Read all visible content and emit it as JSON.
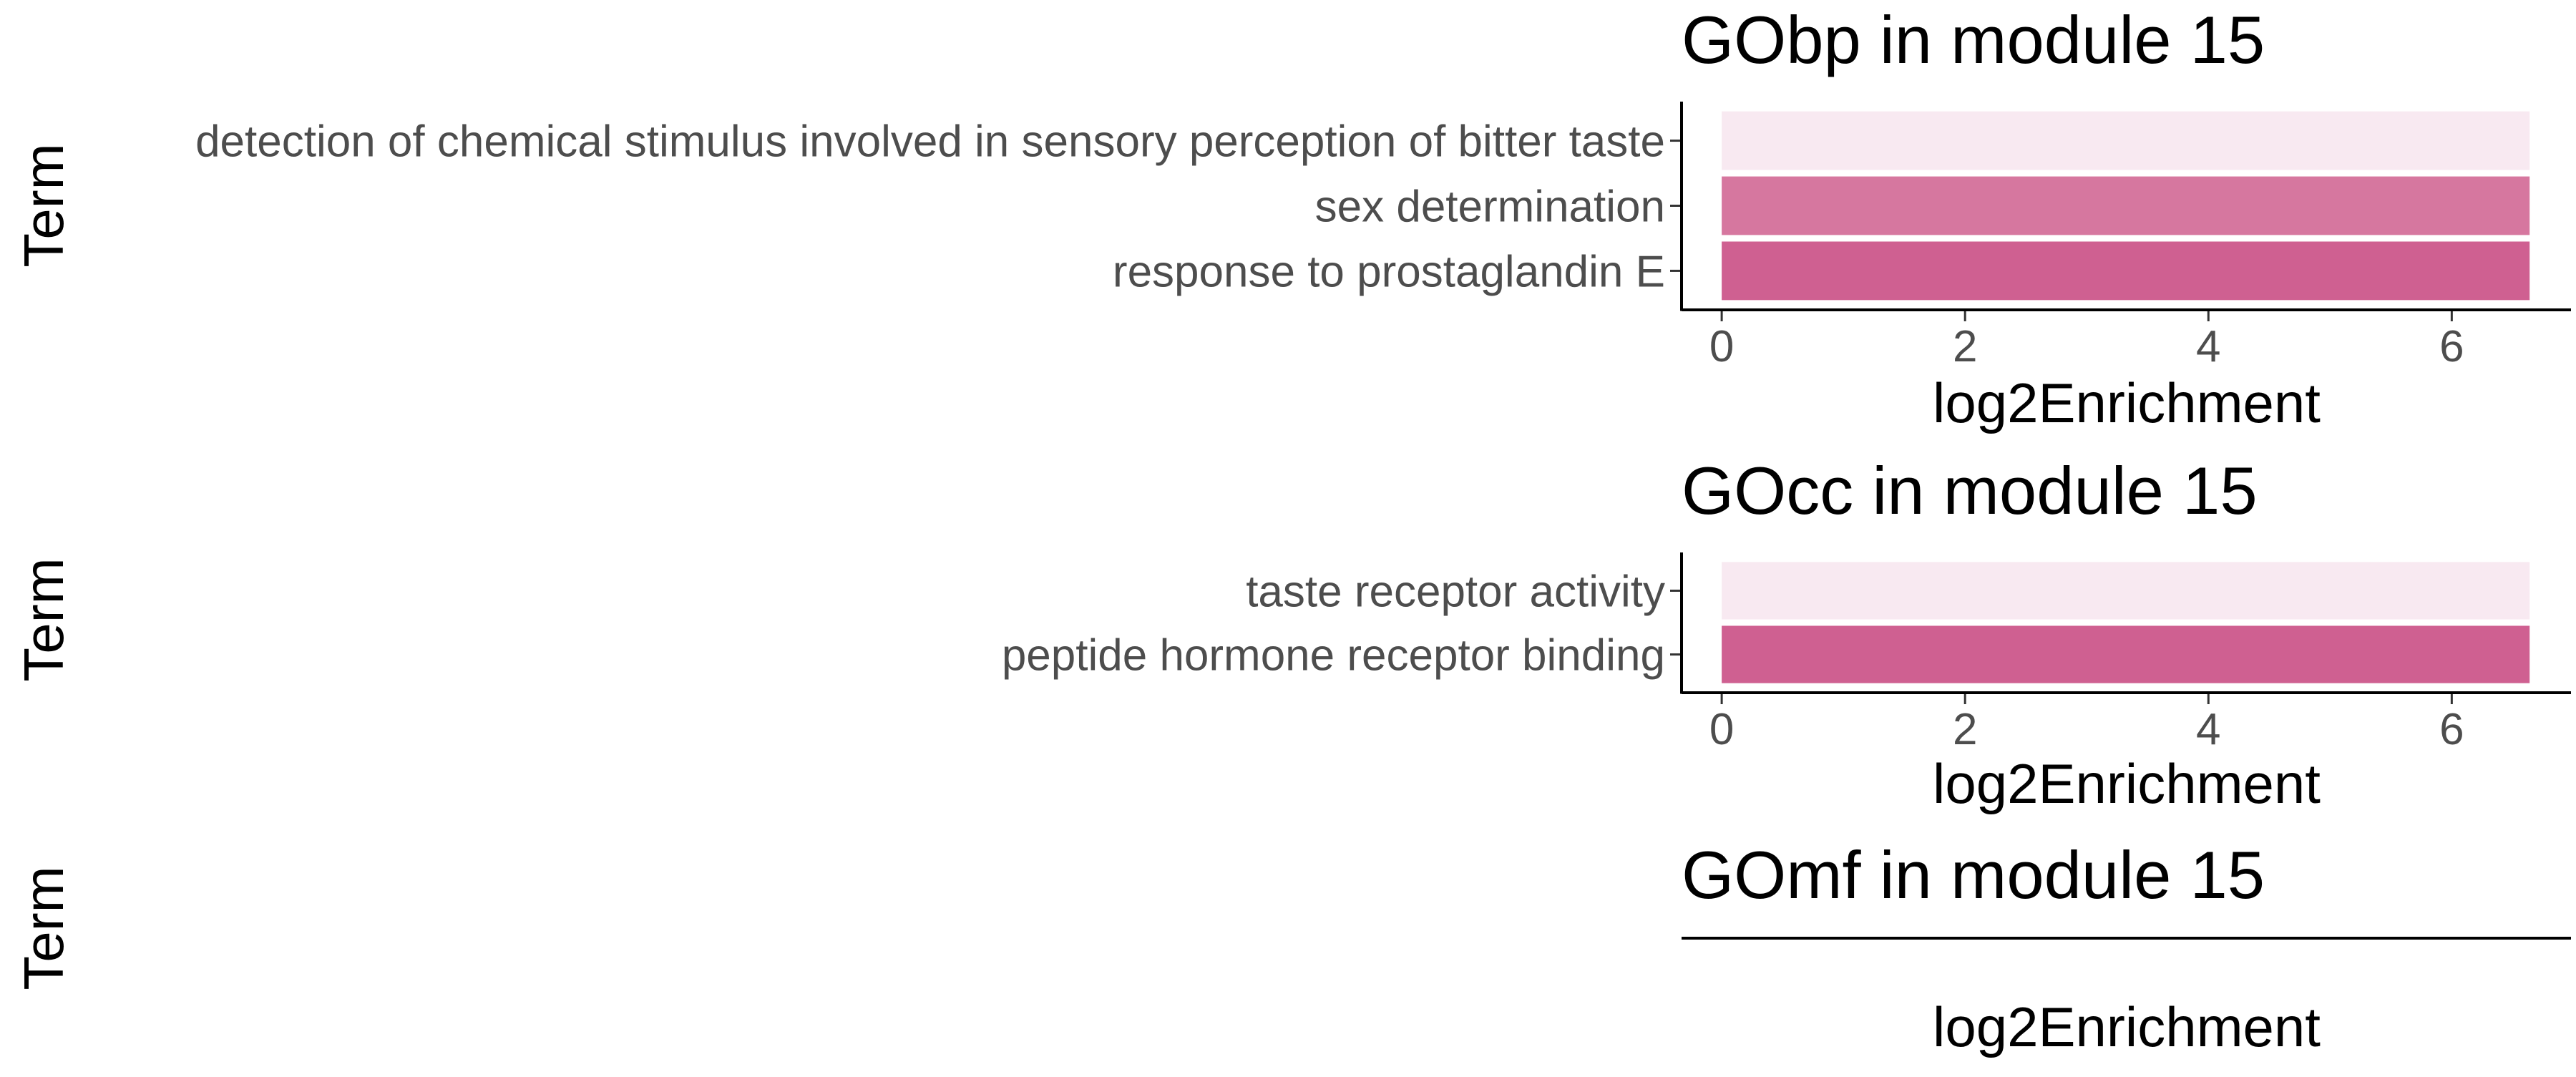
{
  "chart_data": [
    {
      "type": "bar",
      "orientation": "horizontal",
      "title": "GObp in module 15",
      "xlabel": "log2Enrichment",
      "ylabel": "Term",
      "xlim": [
        -0.33,
        6.98
      ],
      "xticks": [
        "0",
        "2",
        "4",
        "6"
      ],
      "grid": false,
      "categories": [
        "detection of chemical stimulus involved in sensory perception of bitter taste",
        "sex determination",
        "response to prostaglandin E"
      ],
      "values": [
        6.64,
        6.64,
        6.64
      ],
      "colors": [
        "#f8e9f1",
        "#d6779f",
        "#cf6091"
      ]
    },
    {
      "type": "bar",
      "orientation": "horizontal",
      "title": "GOcc in module 15",
      "xlabel": "log2Enrichment",
      "ylabel": "Term",
      "xlim": [
        -0.33,
        6.98
      ],
      "xticks": [
        "0",
        "2",
        "4",
        "6"
      ],
      "grid": false,
      "categories": [
        "taste receptor activity",
        "peptide hormone receptor binding"
      ],
      "values": [
        6.64,
        6.64
      ],
      "colors": [
        "#f8e9f1",
        "#cf6091"
      ]
    },
    {
      "type": "bar",
      "orientation": "horizontal",
      "title": "GOmf in module 15",
      "xlabel": "log2Enrichment",
      "ylabel": "Term",
      "xticks": [],
      "grid": false,
      "categories": [],
      "values": [],
      "colors": []
    }
  ]
}
